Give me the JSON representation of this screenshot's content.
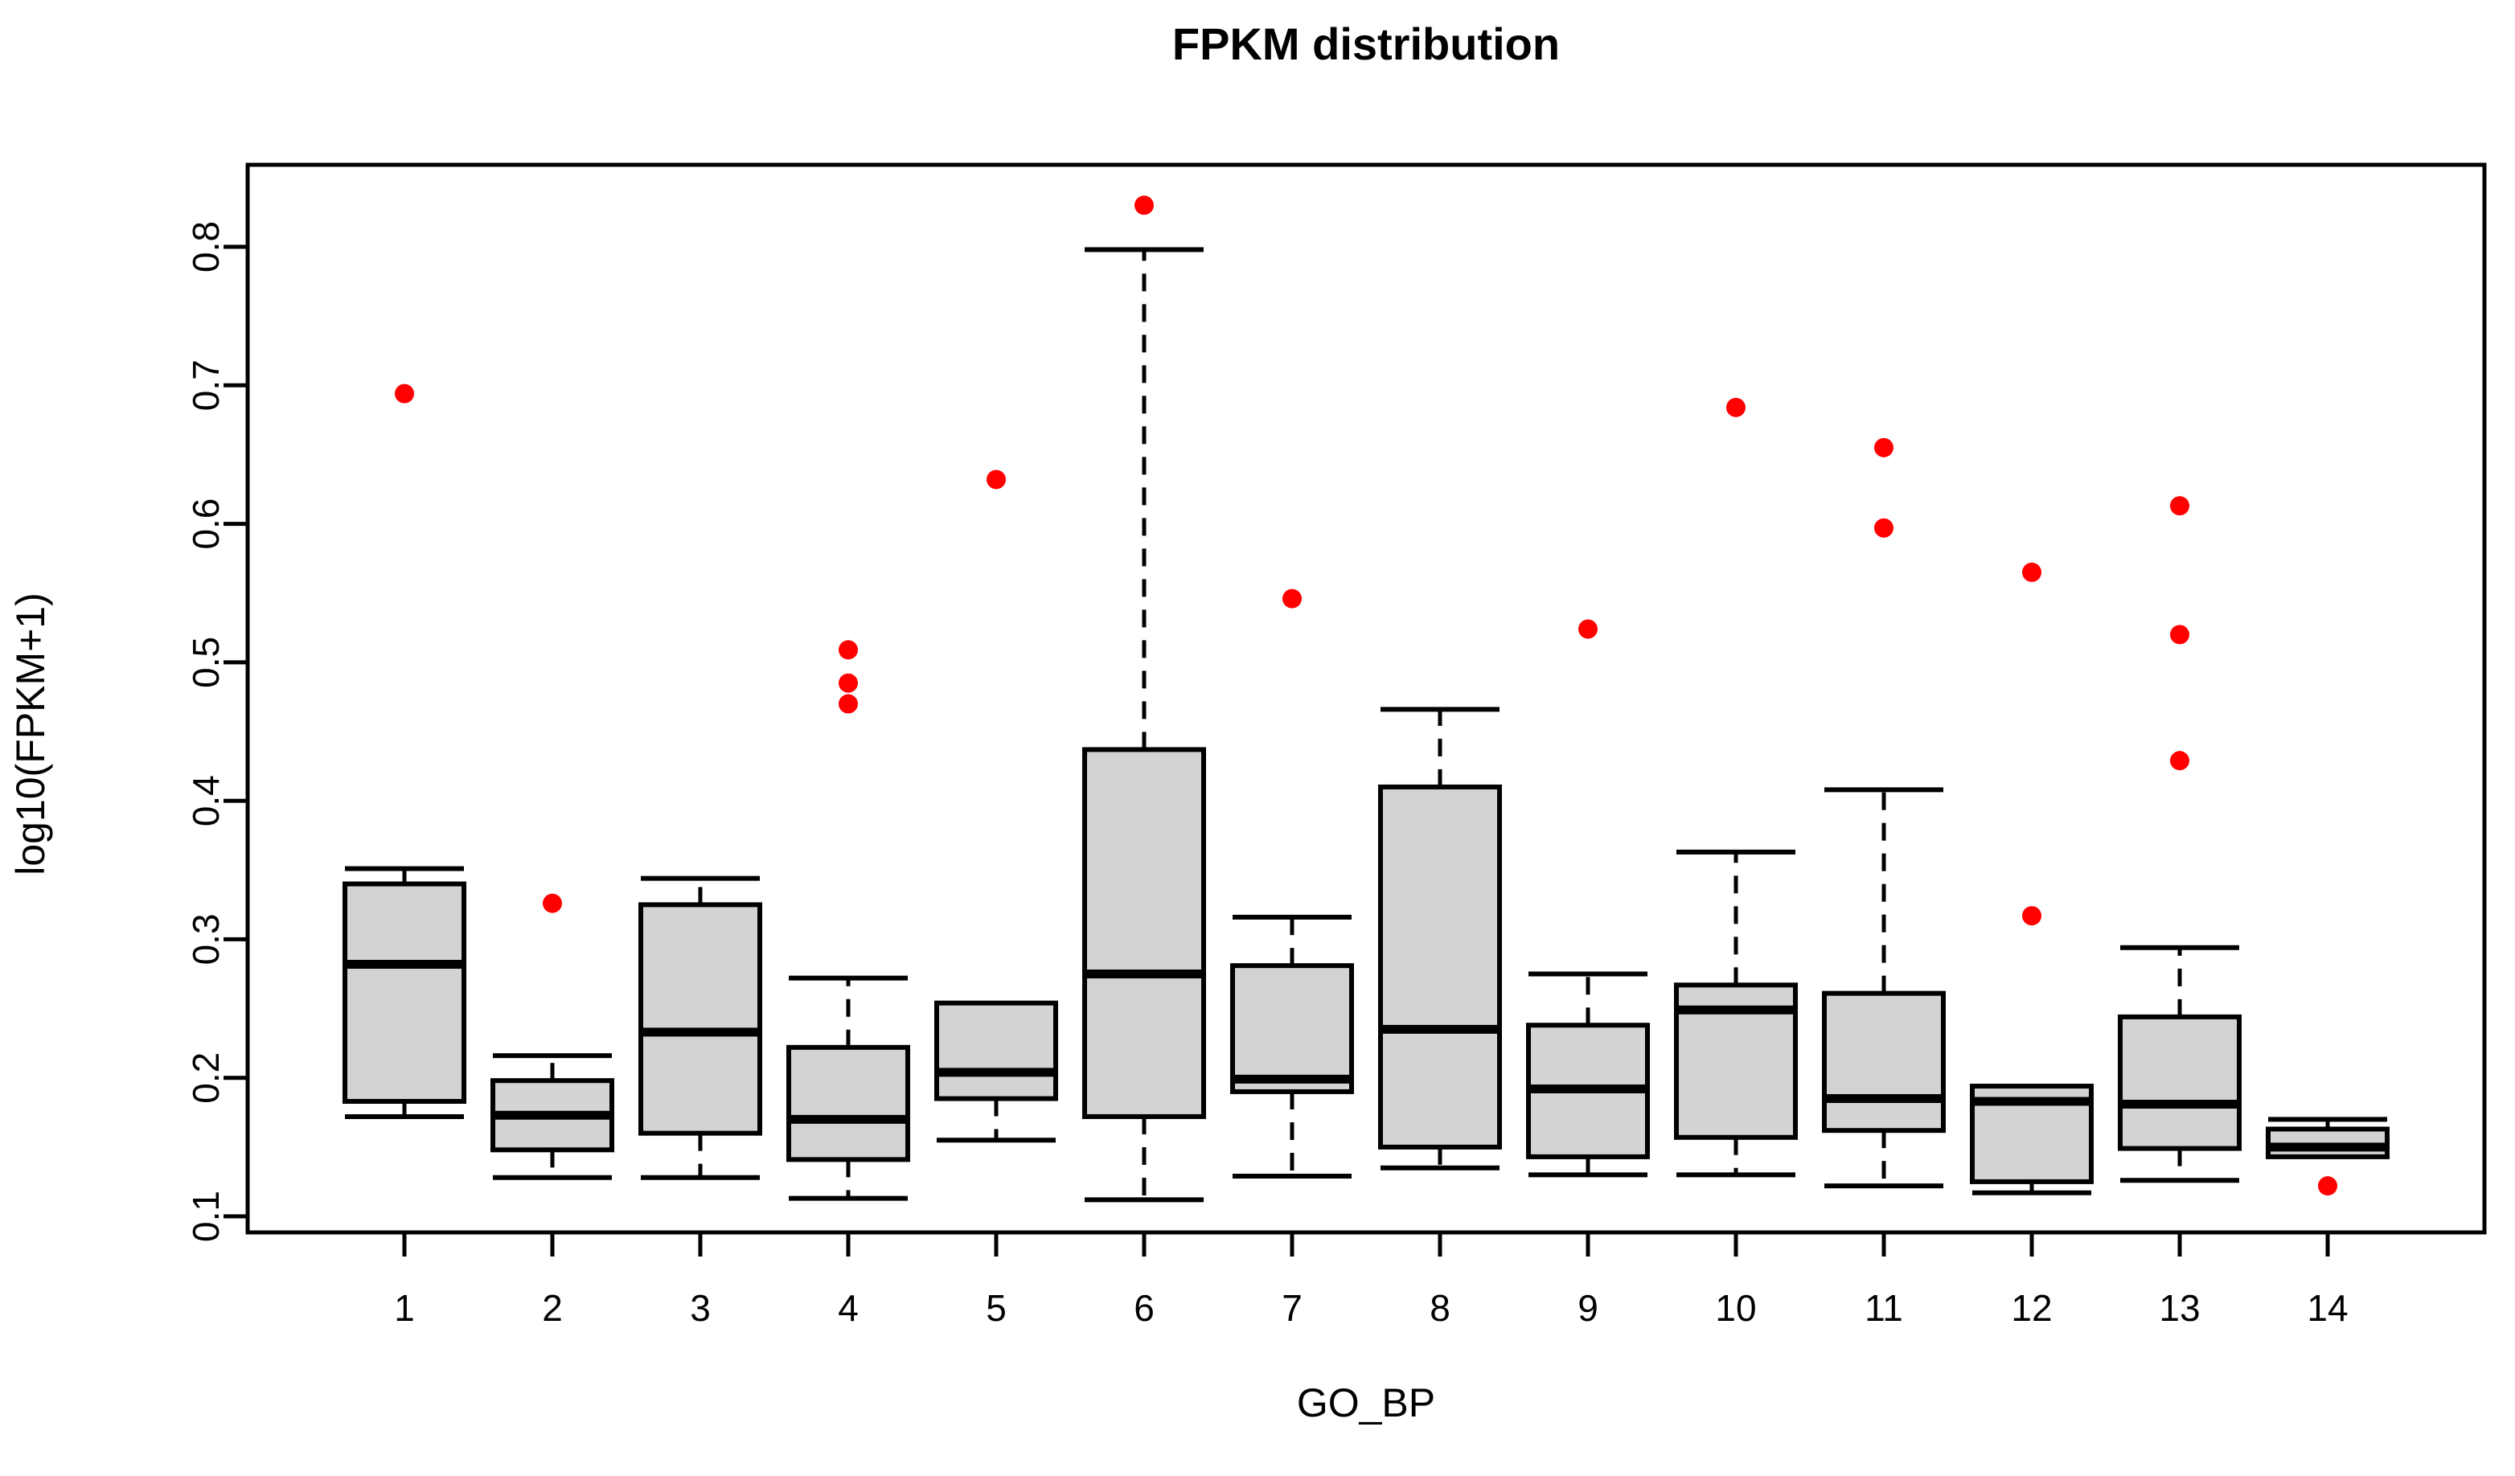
{
  "title": "FPKM distribution",
  "chart_data": {
    "type": "boxplot",
    "title": "FPKM distribution",
    "xlabel": "GO_BP",
    "ylabel": "log10(FPKM+1)",
    "categories": [
      "1",
      "2",
      "3",
      "4",
      "5",
      "6",
      "7",
      "8",
      "9",
      "10",
      "11",
      "12",
      "13",
      "14"
    ],
    "ytick_labels": [
      "0.1",
      "0.2",
      "0.3",
      "0.4",
      "0.5",
      "0.6",
      "0.7",
      "0.8"
    ],
    "yticks": [
      0.1,
      0.2,
      0.3,
      0.4,
      0.5,
      0.6,
      0.7,
      0.8
    ],
    "ylim": [
      0.088,
      0.86
    ],
    "grid": false,
    "legend": null,
    "colors": {
      "box_fill": "#d3d3d3",
      "box_stroke": "#000000",
      "median_color": "#000000",
      "whisker_color": "#000000",
      "outlier_color": "#ff0000",
      "axis_color": "#000000",
      "background": "#ffffff"
    },
    "boxes": [
      {
        "category": "1",
        "whisker_low": 0.172,
        "q1": 0.183,
        "median": 0.282,
        "q3": 0.34,
        "whisker_high": 0.351,
        "outliers": [
          0.694
        ]
      },
      {
        "category": "2",
        "whisker_low": 0.128,
        "q1": 0.148,
        "median": 0.173,
        "q3": 0.198,
        "whisker_high": 0.216,
        "outliers": [
          0.326
        ]
      },
      {
        "category": "3",
        "whisker_low": 0.128,
        "q1": 0.16,
        "median": 0.233,
        "q3": 0.325,
        "whisker_high": 0.344,
        "outliers": []
      },
      {
        "category": "4",
        "whisker_low": 0.113,
        "q1": 0.141,
        "median": 0.17,
        "q3": 0.222,
        "whisker_high": 0.272,
        "outliers": [
          0.509,
          0.485,
          0.47
        ]
      },
      {
        "category": "5",
        "whisker_low": 0.155,
        "q1": 0.185,
        "median": 0.204,
        "q3": 0.254,
        "whisker_high": 0.254,
        "outliers": [
          0.632
        ]
      },
      {
        "category": "6",
        "whisker_low": 0.112,
        "q1": 0.172,
        "median": 0.275,
        "q3": 0.437,
        "whisker_high": 0.798,
        "outliers": [
          0.83
        ]
      },
      {
        "category": "7",
        "whisker_low": 0.129,
        "q1": 0.19,
        "median": 0.199,
        "q3": 0.281,
        "whisker_high": 0.316,
        "outliers": [
          0.546
        ]
      },
      {
        "category": "8",
        "whisker_low": 0.135,
        "q1": 0.15,
        "median": 0.235,
        "q3": 0.41,
        "whisker_high": 0.466,
        "outliers": []
      },
      {
        "category": "9",
        "whisker_low": 0.13,
        "q1": 0.143,
        "median": 0.192,
        "q3": 0.238,
        "whisker_high": 0.275,
        "outliers": [
          0.524
        ]
      },
      {
        "category": "10",
        "whisker_low": 0.13,
        "q1": 0.157,
        "median": 0.249,
        "q3": 0.267,
        "whisker_high": 0.363,
        "outliers": [
          0.684
        ]
      },
      {
        "category": "11",
        "whisker_low": 0.122,
        "q1": 0.162,
        "median": 0.185,
        "q3": 0.261,
        "whisker_high": 0.408,
        "outliers": [
          0.655,
          0.597
        ]
      },
      {
        "category": "12",
        "whisker_low": 0.117,
        "q1": 0.125,
        "median": 0.183,
        "q3": 0.194,
        "whisker_high": 0.194,
        "outliers": [
          0.565,
          0.317
        ]
      },
      {
        "category": "13",
        "whisker_low": 0.126,
        "q1": 0.149,
        "median": 0.181,
        "q3": 0.244,
        "whisker_high": 0.294,
        "outliers": [
          0.613,
          0.52,
          0.429
        ]
      },
      {
        "category": "14",
        "whisker_low": 0.143,
        "q1": 0.143,
        "median": 0.15,
        "q3": 0.163,
        "whisker_high": 0.17,
        "outliers": [
          0.122
        ]
      }
    ]
  }
}
